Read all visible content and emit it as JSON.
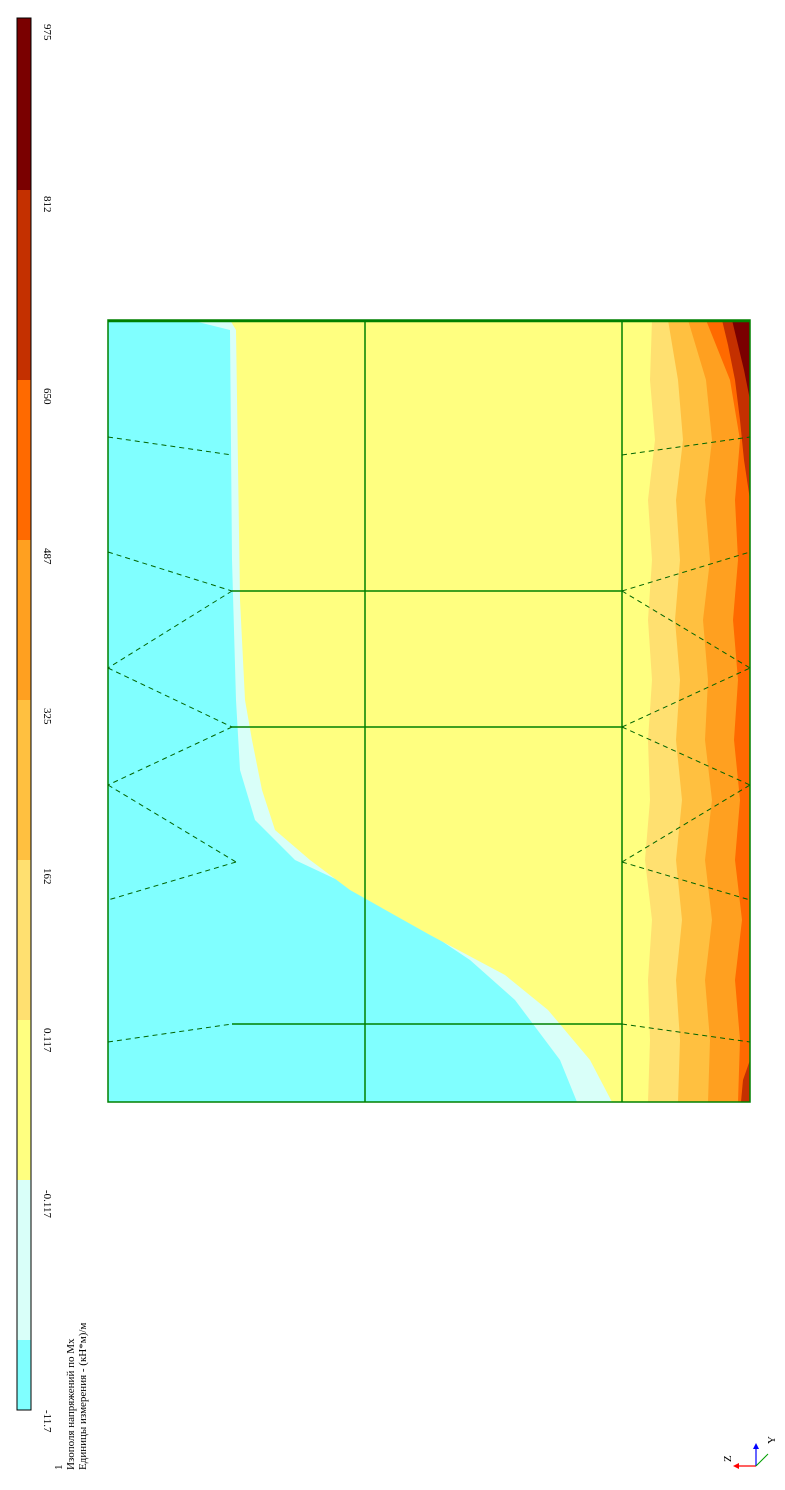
{
  "legend": {
    "values": [
      "-11.7",
      "-0.117",
      "0.117",
      "162",
      "325",
      "487",
      "650",
      "812",
      "975"
    ],
    "colors": [
      "#80ffff",
      "#d9fff9",
      "#ffff80",
      "#ffe070",
      "#ffc040",
      "#ffa020",
      "#ff6a00",
      "#c43000",
      "#7a0000"
    ],
    "index": "1",
    "title": "Изополя напряжений по Mx",
    "units": "Единицы измерения - (кН*м)/м"
  },
  "axes": {
    "z": "Z",
    "y": "Y"
  },
  "colors": {
    "grid": "#008000",
    "frame": "#000000"
  }
}
